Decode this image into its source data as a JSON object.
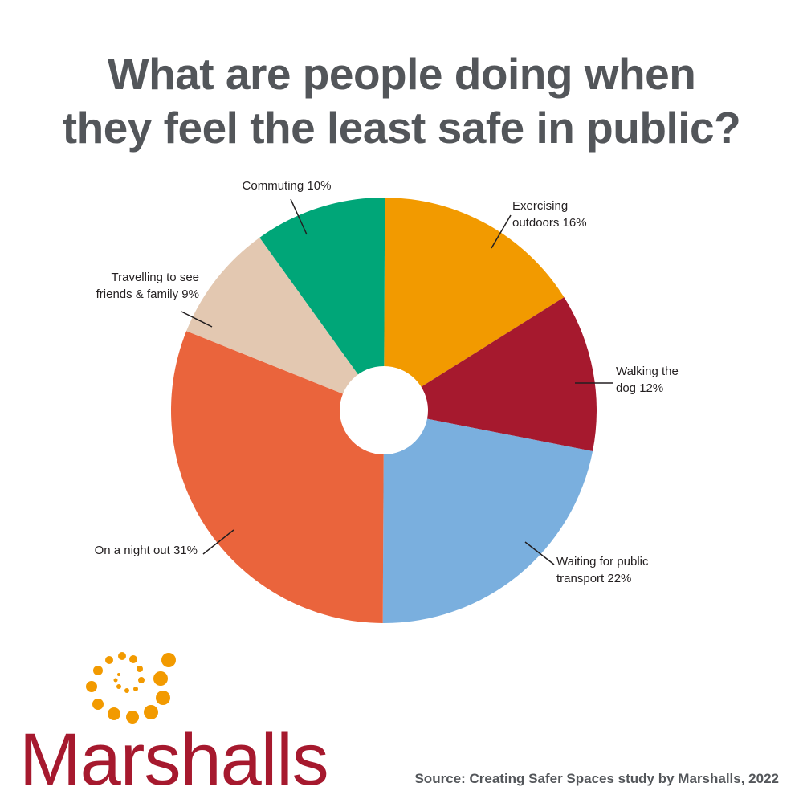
{
  "title_lines": [
    "What are people doing when",
    "they feel the least safe in public?"
  ],
  "chart_data": {
    "type": "pie",
    "donut": true,
    "title": "What are people doing when they feel the least safe in public?",
    "unit": "%",
    "slices": [
      {
        "label_lines": [
          "Exercising",
          "outdoors 16%"
        ],
        "category": "Exercising outdoors",
        "value": 16,
        "color": "#f29a00"
      },
      {
        "label_lines": [
          "Walking the",
          "dog 12%"
        ],
        "category": "Walking the dog",
        "value": 12,
        "color": "#a6192e"
      },
      {
        "label_lines": [
          "Waiting for public",
          "transport 22%"
        ],
        "category": "Waiting for public transport",
        "value": 22,
        "color": "#7aafde"
      },
      {
        "label_lines": [
          "On a night out 31%"
        ],
        "category": "On a night out",
        "value": 31,
        "color": "#ea643c"
      },
      {
        "label_lines": [
          "Travelling to see",
          "friends & family 9%"
        ],
        "category": "Travelling to see friends & family",
        "value": 9,
        "color": "#e3c8b1"
      },
      {
        "label_lines": [
          "Commuting 10%"
        ],
        "category": "Commuting",
        "value": 10,
        "color": "#00a678"
      }
    ]
  },
  "brand": {
    "name": "Marshalls",
    "color": "#a6192e",
    "logo_color": "#f29a00"
  },
  "source": "Source: Creating Safer Spaces study by Marshalls, 2022"
}
